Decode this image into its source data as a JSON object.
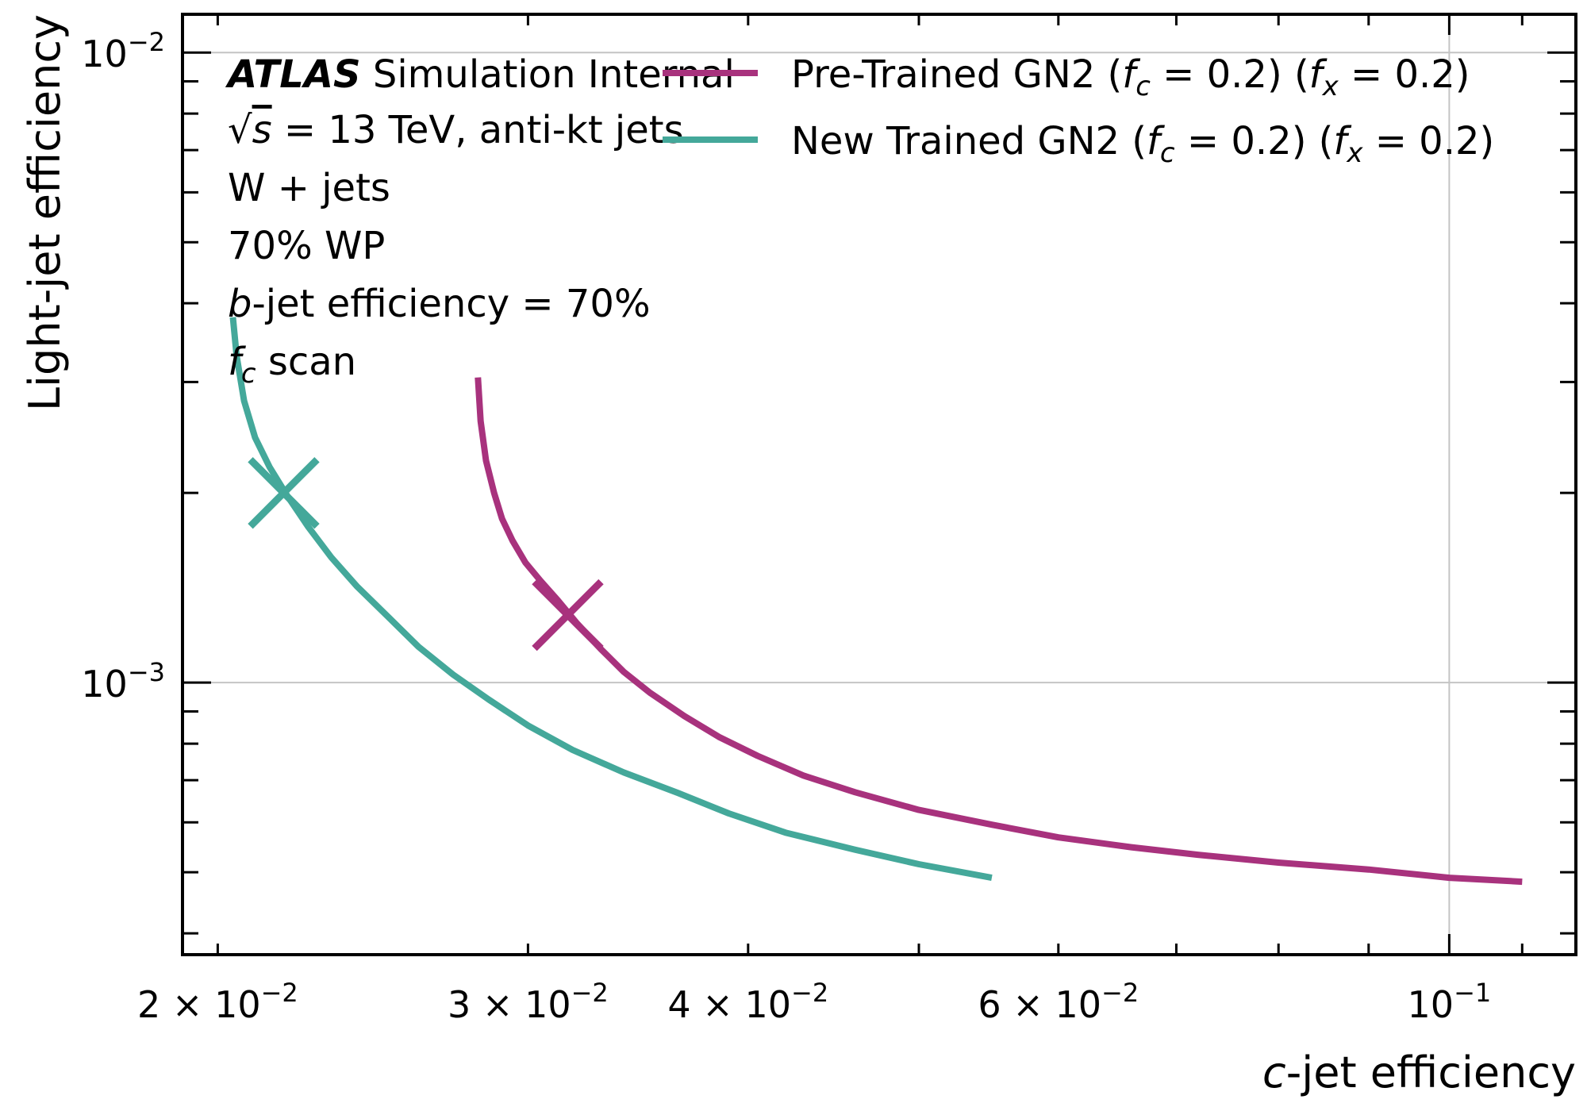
{
  "chart_data": {
    "type": "line",
    "x_scale": "log",
    "y_scale": "log",
    "xlabel": {
      "italic": "c",
      "rest": "-jet efficiency"
    },
    "ylabel": "Light-jet efficiency",
    "xlim": [
      0.0191,
      0.118
    ],
    "ylim": [
      0.00037,
      0.0115
    ],
    "grid": true,
    "legend_position": "top-right",
    "x_major_ticks": [
      {
        "value": 0.02,
        "mant": "2",
        "exp": "−2"
      },
      {
        "value": 0.03,
        "mant": "3",
        "exp": "−2"
      },
      {
        "value": 0.04,
        "mant": "4",
        "exp": "−2"
      },
      {
        "value": 0.06,
        "mant": "6",
        "exp": "−2"
      },
      {
        "value": 0.1,
        "mant": "",
        "exp": "−1"
      }
    ],
    "y_major_ticks": [
      {
        "value": 0.01,
        "exp": "−2"
      },
      {
        "value": 0.001,
        "exp": "−3"
      }
    ],
    "annotations": {
      "atlas": "ATLAS",
      "status": " Simulation Internal",
      "energy_sqrt": "√",
      "energy_s": "s",
      "energy_rest": " = 13 TeV, anti-kt jets",
      "sample": "W + jets",
      "wp": "70% WP",
      "beff_b": "b",
      "beff_rest": "-jet efficiency = 70%",
      "scan_f": "f",
      "scan_sub": "c",
      "scan_rest": " scan"
    },
    "series": [
      {
        "legend_prefix": "Pre-Trained GN2 (",
        "legend_f1": "f",
        "legend_sub1": "c",
        "legend_eq1": " = 0.2) (",
        "legend_f2": "f",
        "legend_sub2": "x",
        "legend_eq2": " = 0.2)",
        "color": "#A8327D",
        "x": [
          0.0281,
          0.0282,
          0.0284,
          0.0287,
          0.029,
          0.0294,
          0.0299,
          0.0305,
          0.0312,
          0.032,
          0.033,
          0.034,
          0.0352,
          0.0368,
          0.0385,
          0.0405,
          0.043,
          0.046,
          0.05,
          0.055,
          0.06,
          0.066,
          0.072,
          0.08,
          0.09,
          0.1,
          0.11
        ],
        "y": [
          0.00305,
          0.0026,
          0.00225,
          0.002,
          0.00182,
          0.00168,
          0.00155,
          0.00145,
          0.00135,
          0.00124,
          0.00113,
          0.00104,
          0.000963,
          0.000885,
          0.00082,
          0.000765,
          0.000712,
          0.00067,
          0.000628,
          0.000595,
          0.000568,
          0.000548,
          0.000533,
          0.000518,
          0.000505,
          0.00049,
          0.000483
        ]
      },
      {
        "legend_prefix": "New Trained GN2 (",
        "legend_f1": "f",
        "legend_sub1": "c",
        "legend_eq1": " = 0.2) (",
        "legend_f2": "f",
        "legend_sub2": "x",
        "legend_eq2": " = 0.2)",
        "color": "#44A89A",
        "x": [
          0.0204,
          0.0205,
          0.0207,
          0.021,
          0.0214,
          0.0219,
          0.0225,
          0.0232,
          0.024,
          0.025,
          0.026,
          0.0272,
          0.0285,
          0.03,
          0.0318,
          0.034,
          0.0365,
          0.039,
          0.042,
          0.046,
          0.05,
          0.055
        ],
        "y": [
          0.0038,
          0.0033,
          0.0028,
          0.00245,
          0.0022,
          0.00198,
          0.00177,
          0.00158,
          0.00142,
          0.00127,
          0.00114,
          0.00103,
          0.00094,
          0.000855,
          0.000782,
          0.00072,
          0.000668,
          0.00062,
          0.000578,
          0.000543,
          0.000515,
          0.00049
        ]
      }
    ],
    "wp_markers": [
      {
        "series": 0,
        "x": 0.0316,
        "y": 0.00128
      },
      {
        "series": 1,
        "x": 0.0218,
        "y": 0.002
      }
    ]
  }
}
